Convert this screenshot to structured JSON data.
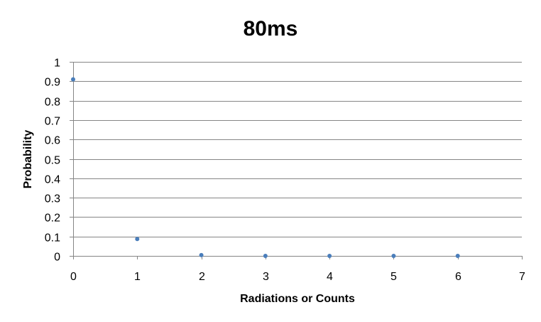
{
  "chart_data": {
    "type": "scatter",
    "title": "80ms",
    "xlabel": "Radiations  or Counts",
    "ylabel": "Probability",
    "xlim": [
      0,
      7
    ],
    "ylim": [
      0,
      1
    ],
    "x_ticks": [
      0,
      1,
      2,
      3,
      4,
      5,
      6,
      7
    ],
    "y_ticks": [
      0,
      0.1,
      0.2,
      0.3,
      0.4,
      0.5,
      0.6,
      0.7,
      0.8,
      0.9,
      1
    ],
    "x_tick_labels": [
      "0",
      "1",
      "2",
      "3",
      "4",
      "5",
      "6",
      "7"
    ],
    "y_tick_labels": [
      "0",
      "0.1",
      "0.2",
      "0.3",
      "0.4",
      "0.5",
      "0.6",
      "0.7",
      "0.8",
      "0.9",
      "1"
    ],
    "grid": "horizontal",
    "legend": "none",
    "series": [
      {
        "x": [
          0,
          1,
          2,
          3,
          4,
          5,
          6
        ],
        "y": [
          0.91,
          0.087,
          0.004,
          0.0001,
          0,
          0,
          0
        ]
      }
    ],
    "colors": {
      "marker": "#4a7ebb",
      "gridline": "#868686",
      "axis": "#868686",
      "text": "#000000"
    }
  }
}
